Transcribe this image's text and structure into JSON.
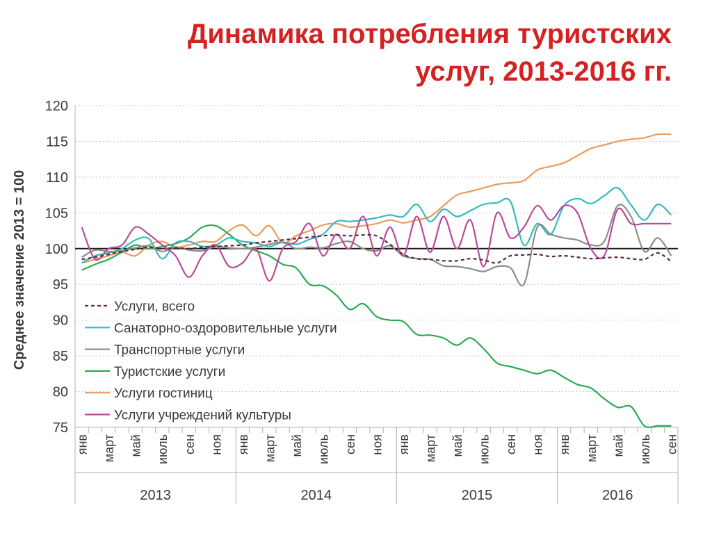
{
  "title_lines": [
    "Динамика потребления туристских",
    "услуг, 2013-2016 гг."
  ],
  "chart_data": {
    "type": "line",
    "title": "Динамика потребления туристских услуг, 2013-2016 гг.",
    "ylabel": "Среднее значение 2013 = 100",
    "xlabel": "",
    "ylim": [
      75,
      120
    ],
    "yticks": [
      75,
      80,
      85,
      90,
      95,
      100,
      105,
      110,
      115,
      120
    ],
    "reference_line": 100,
    "grid": "horizontal dotted",
    "x_month_labels": [
      "янв",
      "март",
      "май",
      "июль",
      "сен",
      "ноя",
      "янв",
      "март",
      "май",
      "июль",
      "сен",
      "ноя",
      "янв",
      "март",
      "май",
      "июль",
      "сен",
      "ноя",
      "янв",
      "март",
      "май",
      "июль",
      "сен"
    ],
    "x_label_months": [
      0,
      2,
      4,
      6,
      8,
      10,
      12,
      14,
      16,
      18,
      20,
      22,
      24,
      26,
      28,
      30,
      32,
      34,
      36,
      38,
      40,
      42,
      44
    ],
    "year_labels": [
      "2013",
      "2014",
      "2015",
      "2016"
    ],
    "legend_position": "lower-left",
    "months": [
      0,
      1,
      2,
      3,
      4,
      5,
      6,
      7,
      8,
      9,
      10,
      11,
      12,
      13,
      14,
      15,
      16,
      17,
      18,
      19,
      20,
      21,
      22,
      23,
      24,
      25,
      26,
      27,
      28,
      29,
      30,
      31,
      32,
      33,
      34,
      35,
      36,
      37,
      38,
      39,
      40,
      41,
      42,
      43,
      44
    ],
    "series": [
      {
        "name": "Услуги, всего",
        "color": "#5a2a3a",
        "dash": "dashed",
        "values": [
          98.5,
          98.8,
          99.2,
          99.6,
          99.9,
          100.2,
          100.0,
          100.1,
          100.0,
          100.2,
          100.3,
          100.4,
          100.5,
          100.8,
          101.0,
          101.2,
          101.4,
          101.6,
          101.8,
          101.9,
          101.8,
          101.9,
          101.8,
          100.6,
          99.2,
          98.6,
          98.5,
          98.3,
          98.3,
          98.6,
          98.4,
          98.0,
          99.0,
          99.1,
          99.2,
          98.9,
          99.0,
          98.8,
          98.6,
          98.7,
          98.8,
          98.6,
          98.5,
          99.4,
          98.2
        ]
      },
      {
        "name": "Санаторно-оздоровительные услуги",
        "color": "#32bcc0",
        "dash": "solid",
        "values": [
          98.0,
          99.0,
          99.4,
          100.0,
          101.2,
          101.4,
          98.6,
          100.8,
          101.0,
          100.3,
          100.5,
          101.5,
          101.0,
          100.8,
          100.3,
          100.9,
          100.6,
          101.3,
          102.0,
          103.8,
          103.8,
          104.0,
          104.3,
          104.7,
          104.5,
          106.2,
          103.8,
          105.5,
          104.5,
          105.3,
          106.2,
          106.4,
          106.6,
          100.5,
          103.5,
          102.0,
          106.0,
          107.0,
          106.3,
          107.4,
          108.5,
          106.1,
          104.0,
          106.2,
          104.7
        ]
      },
      {
        "name": "Транспортные услуги",
        "color": "#8c8c8c",
        "dash": "solid",
        "values": [
          98.8,
          99.8,
          99.6,
          99.7,
          100.1,
          100.4,
          99.6,
          100.2,
          99.8,
          99.7,
          100.3,
          100.1,
          100.0,
          100.2,
          100.6,
          100.9,
          100.0,
          100.2,
          100.1,
          100.7,
          101.0,
          100.0,
          99.7,
          100.4,
          99.0,
          98.6,
          98.5,
          97.6,
          97.5,
          97.2,
          96.8,
          97.5,
          97.3,
          95.0,
          103.0,
          102.0,
          101.5,
          101.2,
          100.5,
          101.0,
          106.0,
          104.5,
          99.6,
          101.5,
          99.0
        ]
      },
      {
        "name": "Туристские услуги",
        "color": "#2aaa55",
        "dash": "solid",
        "values": [
          97.0,
          97.8,
          98.5,
          99.5,
          100.5,
          100.0,
          100.3,
          100.7,
          101.5,
          103.0,
          103.2,
          102.0,
          100.5,
          99.7,
          99.0,
          97.8,
          97.3,
          95.0,
          94.8,
          93.5,
          91.5,
          92.3,
          90.5,
          90.0,
          89.8,
          88.0,
          87.9,
          87.5,
          86.5,
          87.5,
          86.0,
          84.0,
          83.5,
          83.0,
          82.5,
          83.0,
          82.0,
          81.0,
          80.5,
          79.0,
          77.8,
          77.9,
          75.2,
          75.2,
          75.2
        ]
      },
      {
        "name": "Услуги гостиниц",
        "color": "#ee9a5a",
        "dash": "solid",
        "values": [
          98.0,
          98.5,
          99.0,
          99.5,
          99.0,
          100.5,
          101.0,
          100.2,
          100.5,
          101.0,
          101.0,
          102.5,
          103.3,
          101.8,
          103.2,
          100.8,
          101.8,
          102.5,
          103.3,
          103.5,
          103.0,
          103.2,
          103.5,
          104.0,
          103.6,
          104.0,
          104.5,
          106.0,
          107.5,
          108.0,
          108.5,
          109.0,
          109.2,
          109.5,
          111.0,
          111.5,
          112.0,
          113.0,
          114.0,
          114.5,
          115.0,
          115.3,
          115.5,
          116.0,
          116.0
        ]
      },
      {
        "name": "Услуги учреждений культуры",
        "color": "#b84a9a",
        "dash": "solid",
        "values": [
          103.0,
          98.5,
          100.0,
          100.5,
          103.0,
          102.0,
          100.5,
          99.0,
          96.0,
          99.0,
          100.5,
          97.5,
          98.0,
          100.0,
          95.5,
          100.0,
          101.0,
          103.5,
          99.0,
          102.0,
          100.0,
          104.5,
          99.0,
          103.0,
          99.0,
          104.5,
          99.5,
          104.5,
          100.0,
          104.0,
          97.5,
          105.0,
          101.5,
          103.0,
          106.0,
          104.0,
          106.0,
          105.0,
          100.0,
          99.0,
          105.5,
          103.5,
          103.5,
          103.5,
          103.5
        ]
      }
    ]
  }
}
